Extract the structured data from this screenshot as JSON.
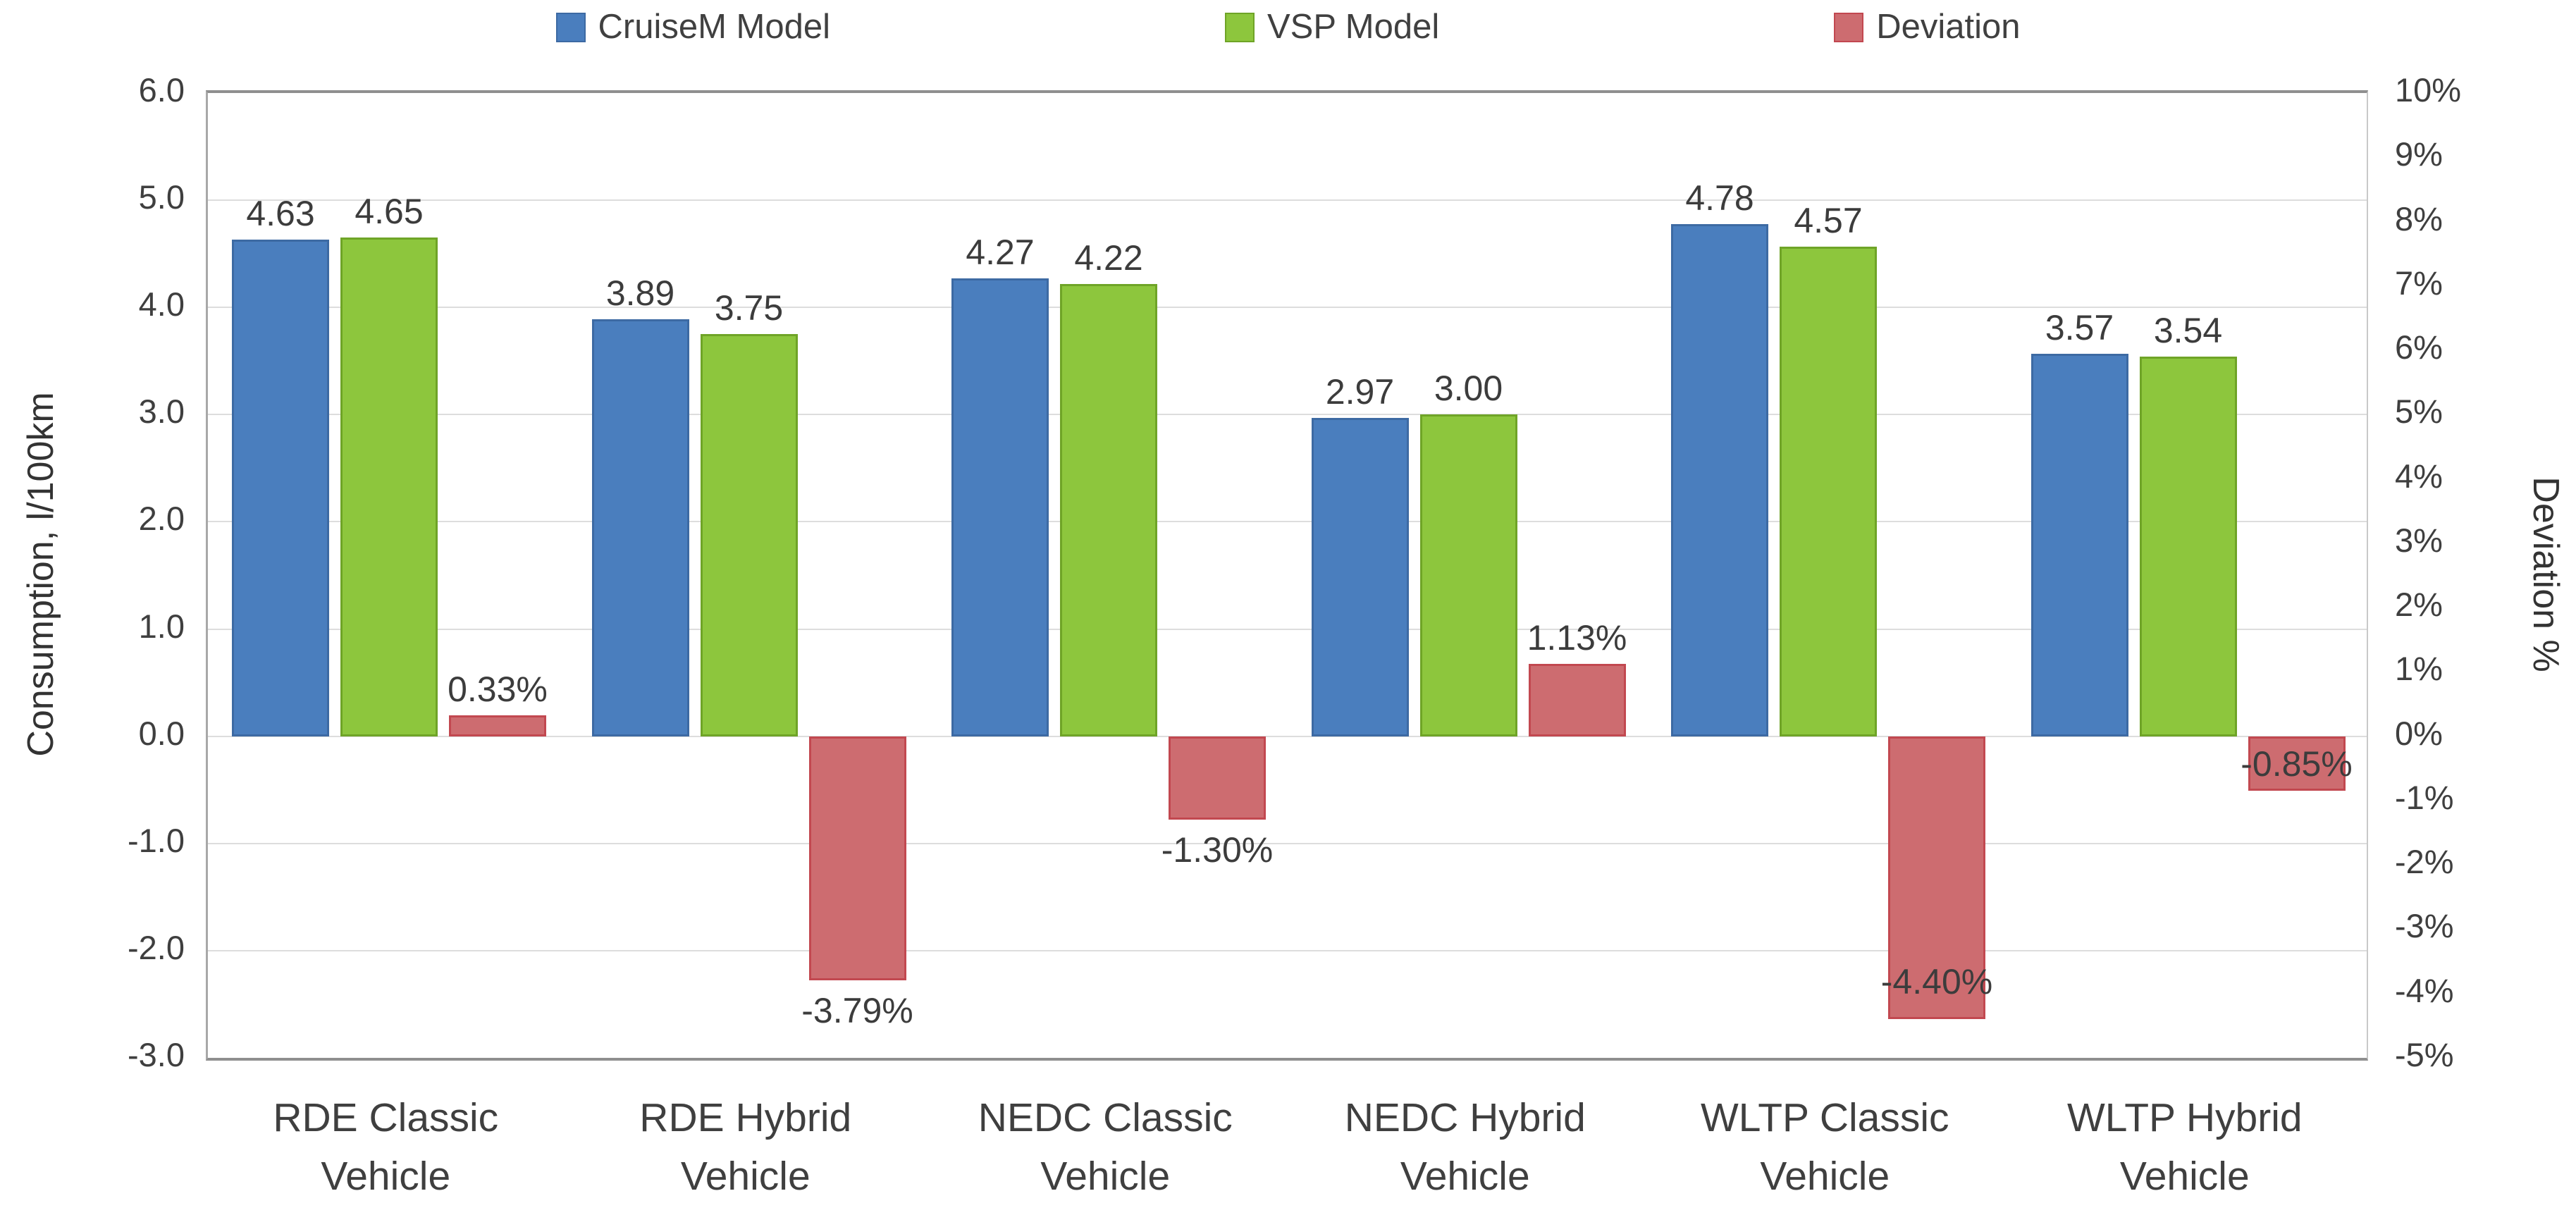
{
  "chart_data": {
    "type": "bar",
    "title": "",
    "categories": [
      "RDE Classic\nVehicle",
      "RDE Hybrid\nVehicle",
      "NEDC Classic\nVehicle",
      "NEDC Hybrid\nVehicle",
      "WLTP Classic\nVehicle",
      "WLTP Hybrid\nVehicle"
    ],
    "series": [
      {
        "name": "CruiseM Model",
        "axis": "left",
        "color": "#4a7ebe",
        "border_color": "#3d6aa3",
        "values": [
          4.63,
          3.89,
          4.27,
          2.97,
          4.78,
          3.57
        ],
        "labels": [
          "4.63",
          "3.89",
          "4.27",
          "2.97",
          "4.78",
          "3.57"
        ],
        "label_placement": [
          "above",
          "above",
          "above",
          "above",
          "above",
          "above"
        ]
      },
      {
        "name": "VSP Model",
        "axis": "left",
        "color": "#8dc63d",
        "border_color": "#6fa427",
        "values": [
          4.65,
          3.75,
          4.22,
          3.0,
          4.57,
          3.54
        ],
        "labels": [
          "4.65",
          "3.75",
          "4.22",
          "3.00",
          "4.57",
          "3.54"
        ],
        "label_placement": [
          "above",
          "above",
          "above",
          "above",
          "above",
          "above"
        ]
      },
      {
        "name": "Deviation",
        "axis": "right",
        "color": "#cd6c70",
        "border_color": "#c24850",
        "values": [
          0.33,
          -3.79,
          -1.3,
          1.13,
          -4.4,
          -0.85
        ],
        "labels": [
          "0.33%",
          "-3.79%",
          "-1.30%",
          "1.13%",
          "-4.40%",
          "-0.85%"
        ],
        "label_placement": [
          "above",
          "below",
          "below",
          "above",
          "inside-bottom",
          "inside-center"
        ]
      }
    ],
    "left_axis": {
      "title": "Consumption, l/100km",
      "min": -3.0,
      "max": 6.0,
      "step": 1.0,
      "tick_labels": [
        "6.0",
        "5.0",
        "4.0",
        "3.0",
        "2.0",
        "1.0",
        "0.0",
        "-1.0",
        "-2.0",
        "-3.0"
      ]
    },
    "right_axis": {
      "title": "Deviation %",
      "min": -5,
      "max": 10,
      "step": 1,
      "tick_labels": [
        "10%",
        "9%",
        "8%",
        "7%",
        "6%",
        "5%",
        "4%",
        "3%",
        "2%",
        "1%",
        "0%",
        "-1%",
        "-2%",
        "-3%",
        "-4%",
        "-5%"
      ]
    },
    "grid": true,
    "legend_position": "top",
    "plot_background": "#ffffff",
    "gridline_color": "#dddddd"
  }
}
